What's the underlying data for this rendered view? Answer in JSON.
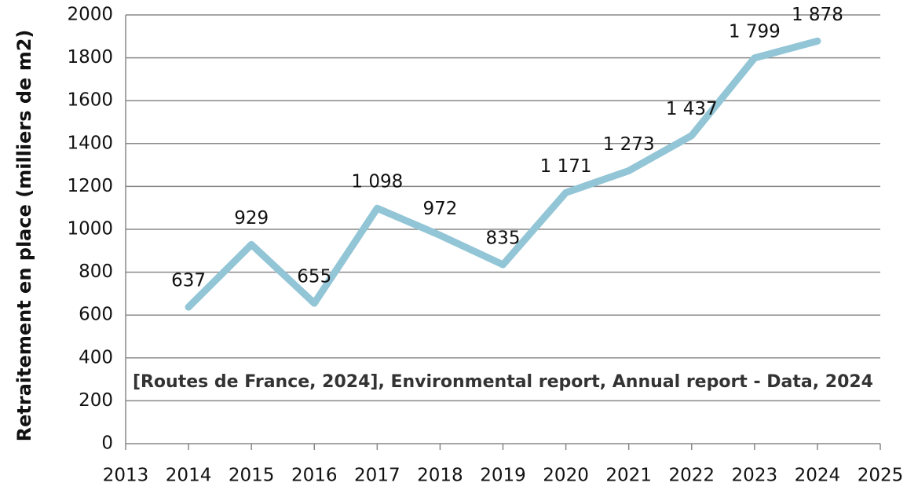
{
  "chart_data": {
    "type": "line",
    "ylabel": "Retraitement en place (milliers de m2)",
    "annotation": "[Routes de France, 2024], Environmental report, Annual report - Data, 2024",
    "x": [
      2014,
      2015,
      2016,
      2017,
      2018,
      2019,
      2020,
      2021,
      2022,
      2023,
      2024
    ],
    "series": [
      {
        "name": "Retraitement en place",
        "color": "#92c5d6",
        "values": [
          637,
          929,
          655,
          1098,
          972,
          835,
          1171,
          1273,
          1437,
          1799,
          1878
        ],
        "value_labels": [
          "637",
          "929",
          "655",
          "1 098",
          "972",
          "835",
          "1 171",
          "1 273",
          "1 437",
          "1 799",
          "1 878"
        ]
      }
    ],
    "xlim": [
      2013,
      2025
    ],
    "xticks": [
      2013,
      2014,
      2015,
      2016,
      2017,
      2018,
      2019,
      2020,
      2021,
      2022,
      2023,
      2024,
      2025
    ],
    "ylim": [
      0,
      2000
    ],
    "yticks": [
      0,
      200,
      400,
      600,
      800,
      1000,
      1200,
      1400,
      1600,
      1800,
      2000
    ],
    "grid": true
  }
}
